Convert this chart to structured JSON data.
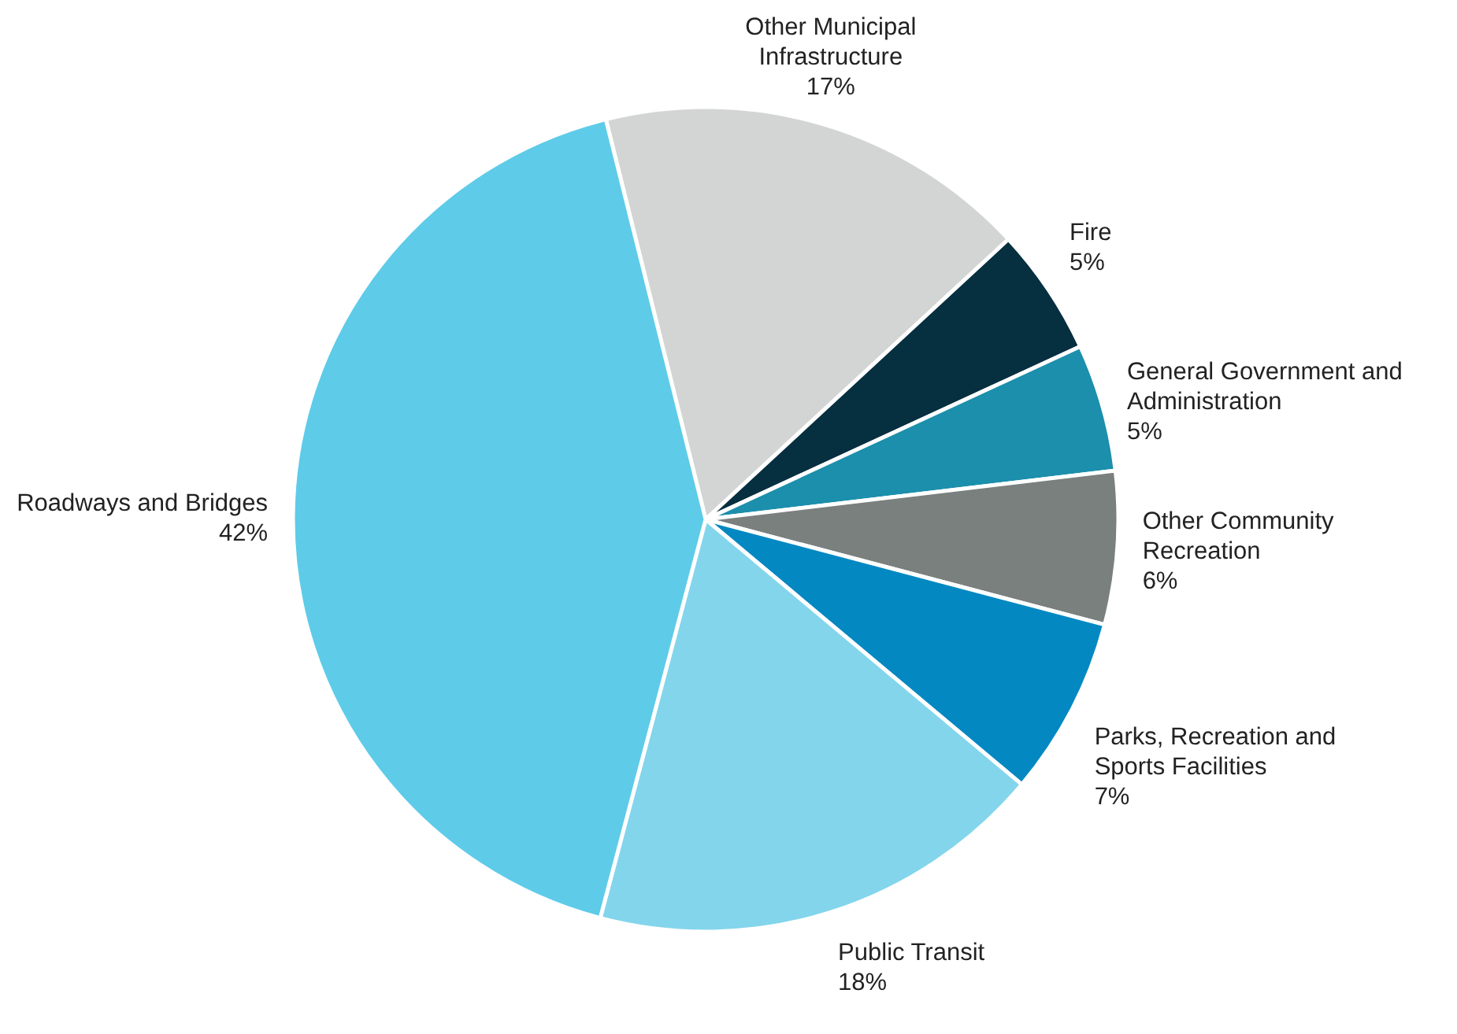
{
  "chart_data": {
    "type": "pie",
    "categories": [
      "Other Municipal Infrastructure",
      "Fire",
      "General Government and Administration",
      "Other Community Recreation",
      "Parks, Recreation and Sports Facilities",
      "Public Transit",
      "Roadways and Bridges"
    ],
    "values": [
      17,
      5,
      5,
      6,
      7,
      18,
      42
    ],
    "value_labels": [
      "17%",
      "5%",
      "5%",
      "6%",
      "7%",
      "18%",
      "42%"
    ],
    "colors": [
      "#d3d4d4",
      "#062f40",
      "#1b8fac",
      "#7a807e",
      "#0388c2",
      "#83d5ec",
      "#5ecbe9"
    ]
  }
}
